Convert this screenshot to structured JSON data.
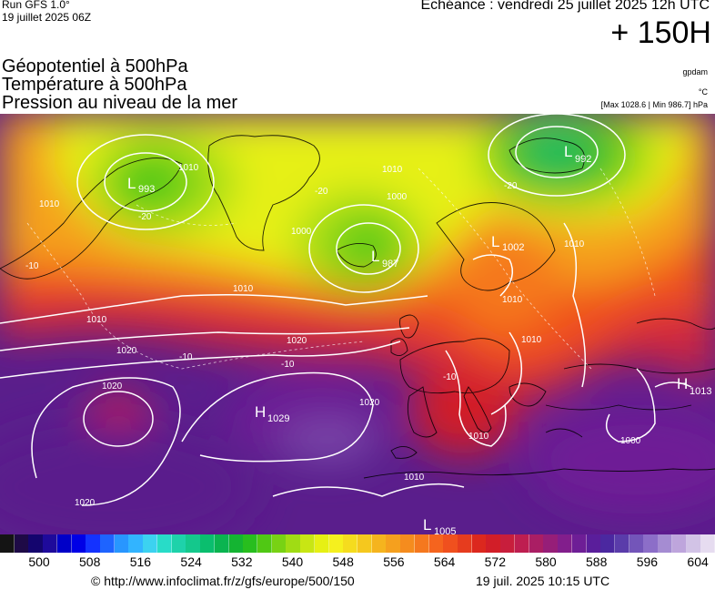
{
  "header": {
    "run_label": "Run GFS 1.0°",
    "run_date": "19 juillet 2025 06Z",
    "echeance": "Echéance : vendredi 25 juillet 2025 12h UTC",
    "lead_time": "+ 150H"
  },
  "parameters": [
    "Géopotentiel à 500hPa",
    "Température à 500hPa",
    "Pression au niveau de la mer"
  ],
  "units": {
    "geopotential": "gpdam",
    "temperature": "°C",
    "pressure_maxmin": "[Max 1028.6 | Min 986.7] hPa"
  },
  "pressure_centers": [
    {
      "type": "L",
      "value": "993"
    },
    {
      "type": "L",
      "value": "992"
    },
    {
      "type": "L",
      "value": "987"
    },
    {
      "type": "L",
      "value": "1002"
    },
    {
      "type": "H",
      "value": "1029"
    },
    {
      "type": "H",
      "value": "1013"
    },
    {
      "type": "L",
      "value": "1005"
    }
  ],
  "isobar_labels": [
    "1010",
    "1010",
    "1000",
    "1000",
    "1010",
    "1010",
    "1020",
    "1020",
    "1020",
    "1010",
    "1010",
    "1020",
    "1020",
    "1010",
    "1010",
    "1010",
    "1000",
    "1010"
  ],
  "isotherm_labels": [
    "-20",
    "-20",
    "-20",
    "-10",
    "-10",
    "-10",
    "-10"
  ],
  "colorbar": {
    "tick_labels": [
      "500",
      "508",
      "516",
      "524",
      "532",
      "540",
      "548",
      "556",
      "564",
      "572",
      "580",
      "588",
      "596",
      "604"
    ],
    "colors": [
      "#141414",
      "#1e0a46",
      "#14056e",
      "#1e0a9b",
      "#0000c8",
      "#0000e6",
      "#1432ff",
      "#1e64ff",
      "#2896ff",
      "#32b4ff",
      "#3cd2f0",
      "#28dcc8",
      "#1ed2aa",
      "#14c88c",
      "#0abe6e",
      "#0ab450",
      "#14b432",
      "#28be1e",
      "#50c814",
      "#78d214",
      "#a0dc14",
      "#c8e614",
      "#e6f014",
      "#f5f01e",
      "#f5dc1e",
      "#f5c81e",
      "#f5b41e",
      "#f5a01e",
      "#f58c1e",
      "#f5781e",
      "#f5641e",
      "#f0501e",
      "#e63c1e",
      "#dc281e",
      "#d21e28",
      "#c81e3c",
      "#be1e50",
      "#aa1e64",
      "#961e78",
      "#821e8c",
      "#6e1e96",
      "#5a1e9b",
      "#4b28a0",
      "#5a3caa",
      "#7355b9",
      "#8c6ec8",
      "#a58cd2",
      "#bea5dc",
      "#d2c3e6",
      "#e6dcf0"
    ]
  },
  "footer": {
    "url": "© http://www.infoclimat.fr/z/gfs/europe/500/150",
    "timestamp": "19 juil. 2025 10:15 UTC"
  }
}
